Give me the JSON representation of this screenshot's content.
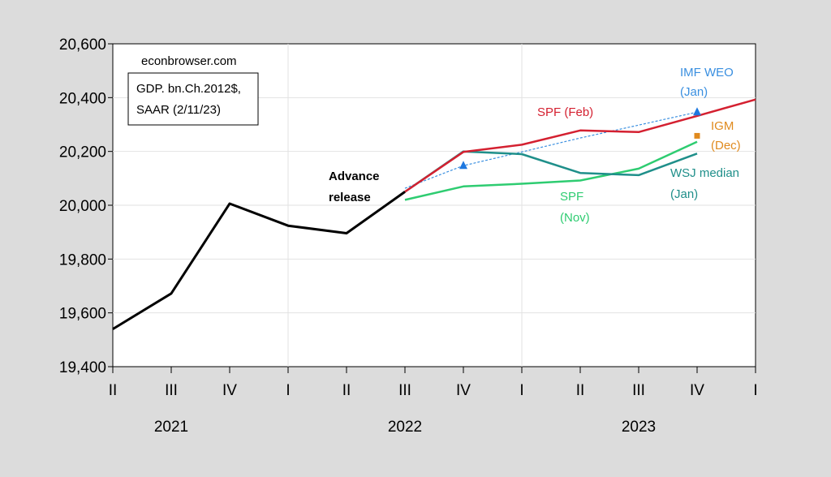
{
  "chart_data": {
    "type": "line",
    "source": "econbrowser.com",
    "note_lines": [
      "GDP. bn.Ch.2012$,",
      "SAAR (2/11/23)"
    ],
    "ylim": [
      19400,
      20600
    ],
    "yticks": [
      19400,
      19600,
      19800,
      20000,
      20200,
      20400,
      20600
    ],
    "ytick_labels": [
      "19,400",
      "19,600",
      "19,800",
      "20,000",
      "20,200",
      "20,400",
      "20,600"
    ],
    "quarters": [
      "II",
      "III",
      "IV",
      "I",
      "II",
      "III",
      "IV",
      "I",
      "II",
      "III",
      "IV",
      "I"
    ],
    "years": [
      {
        "label": "2021",
        "at": 1
      },
      {
        "label": "2022",
        "at": 5
      },
      {
        "label": "2023",
        "at": 9
      }
    ],
    "series": [
      {
        "name": "Advance release",
        "label_lines": [
          "Advance",
          "release"
        ],
        "color": "#000000",
        "start": 0,
        "values": [
          19540,
          19672,
          20006,
          19924,
          19896,
          20050
        ]
      },
      {
        "name": "SPF (Feb)",
        "label_lines": [
          "SPF (Feb)"
        ],
        "color": "#d42030",
        "start": 5,
        "values": [
          20050,
          20198,
          20225,
          20278,
          20272,
          20332,
          20393
        ]
      },
      {
        "name": "SPF (Nov)",
        "label_lines": [
          "SPF",
          "(Nov)"
        ],
        "color": "#2ecc71",
        "start": 5,
        "values": [
          20020,
          20070,
          20080,
          20092,
          20136,
          20236
        ]
      },
      {
        "name": "WSJ median (Jan)",
        "label_lines": [
          "WSJ median",
          "(Jan)"
        ],
        "color": "#1f8f8a",
        "start": 5,
        "values": [
          20050,
          20200,
          20190,
          20120,
          20112,
          20192
        ]
      },
      {
        "name": "IMF WEO (Jan)",
        "label_lines": [
          "IMF WEO",
          "(Jan)"
        ],
        "color": "#3a8fe0",
        "start": 5,
        "dashed": true,
        "values": [
          20063,
          20147,
          20198,
          20250,
          20298,
          20346
        ]
      }
    ],
    "markers": [
      {
        "name": "IMF WEO",
        "shape": "triangle",
        "color": "#1e78e0",
        "x": 6,
        "y": 20147
      },
      {
        "name": "IMF WEO",
        "shape": "triangle",
        "color": "#1e78e0",
        "x": 10,
        "y": 20346
      },
      {
        "name": "IGM (Dec)",
        "label_lines": [
          "IGM",
          "(Dec)"
        ],
        "shape": "square",
        "color": "#e08a1e",
        "x": 10,
        "y": 20258
      }
    ]
  }
}
